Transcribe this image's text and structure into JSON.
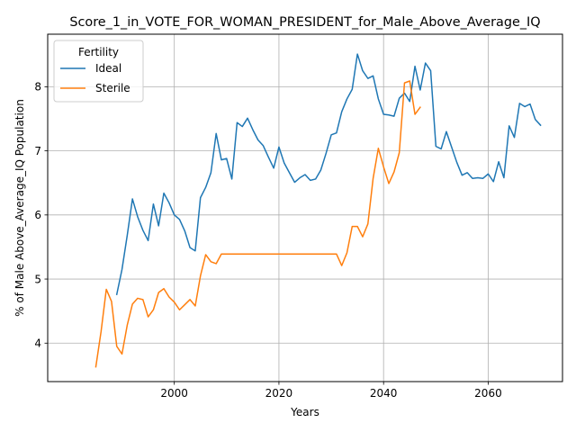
{
  "chart_data": {
    "type": "line",
    "title": "Score_1_in_VOTE_FOR_WOMAN_PRESIDENT_for_Male_Above_Average_IQ",
    "xlabel": "Years",
    "ylabel": "% of Male Above_Average_IQ Population",
    "xlim": [
      1975.8,
      2074.2
    ],
    "ylim": [
      3.4,
      8.82
    ],
    "xticks": [
      2000,
      2020,
      2040,
      2060
    ],
    "yticks": [
      4,
      5,
      6,
      7,
      8
    ],
    "grid": true,
    "legend": {
      "title": "Fertility",
      "placement": "top-left"
    },
    "series": [
      {
        "name": "Ideal",
        "color": "#1f77b4",
        "x": [
          1989,
          1990,
          1991,
          1992,
          1993,
          1994,
          1995,
          1996,
          1997,
          1998,
          1999,
          2000,
          2001,
          2002,
          2003,
          2004,
          2005,
          2006,
          2007,
          2008,
          2009,
          2010,
          2011,
          2012,
          2013,
          2014,
          2015,
          2016,
          2017,
          2018,
          2019,
          2020,
          2021,
          2022,
          2023,
          2024,
          2025,
          2026,
          2027,
          2028,
          2029,
          2030,
          2031,
          2032,
          2033,
          2034,
          2035,
          2036,
          2037,
          2038,
          2039,
          2040,
          2041,
          2042,
          2043,
          2044,
          2045,
          2046,
          2047,
          2048,
          2049,
          2050,
          2051,
          2052,
          2053,
          2054,
          2055,
          2056,
          2057,
          2058,
          2059,
          2060,
          2061,
          2062,
          2063,
          2064,
          2065,
          2066,
          2067,
          2068,
          2069,
          2070
        ],
        "values": [
          4.76,
          5.15,
          5.68,
          6.25,
          5.97,
          5.76,
          5.6,
          6.17,
          5.83,
          6.34,
          6.19,
          6.0,
          5.93,
          5.75,
          5.49,
          5.44,
          6.27,
          6.43,
          6.66,
          7.27,
          6.86,
          6.88,
          6.56,
          7.44,
          7.38,
          7.51,
          7.33,
          7.17,
          7.08,
          6.9,
          6.73,
          7.06,
          6.81,
          6.66,
          6.51,
          6.58,
          6.63,
          6.54,
          6.56,
          6.7,
          6.96,
          7.25,
          7.28,
          7.61,
          7.81,
          7.96,
          8.51,
          8.25,
          8.13,
          8.17,
          7.81,
          7.57,
          7.56,
          7.54,
          7.82,
          7.9,
          7.77,
          8.32,
          7.95,
          8.37,
          8.25,
          7.07,
          7.03,
          7.3,
          7.06,
          6.82,
          6.62,
          6.66,
          6.57,
          6.58,
          6.57,
          6.64,
          6.52,
          6.83,
          6.58,
          7.39,
          7.21,
          7.74,
          7.69,
          7.73,
          7.49,
          7.4
        ]
      },
      {
        "name": "Sterile",
        "color": "#ff7f0e",
        "x": [
          1985,
          1986,
          1987,
          1988,
          1989,
          1990,
          1991,
          1992,
          1993,
          1994,
          1995,
          1996,
          1997,
          1998,
          1999,
          2000,
          2001,
          2002,
          2003,
          2004,
          2005,
          2006,
          2007,
          2008,
          2009,
          2010,
          2011,
          2012,
          2013,
          2014,
          2015,
          2016,
          2017,
          2018,
          2019,
          2020,
          2021,
          2022,
          2023,
          2024,
          2025,
          2026,
          2027,
          2028,
          2029,
          2030,
          2031,
          2032,
          2033,
          2034,
          2035,
          2036,
          2037,
          2038,
          2039,
          2040,
          2041,
          2042,
          2043,
          2044,
          2045,
          2046,
          2047
        ],
        "values": [
          3.63,
          4.18,
          4.84,
          4.65,
          3.95,
          3.83,
          4.28,
          4.61,
          4.7,
          4.68,
          4.41,
          4.52,
          4.79,
          4.85,
          4.72,
          4.64,
          4.52,
          4.6,
          4.68,
          4.58,
          5.05,
          5.38,
          5.27,
          5.24,
          5.39,
          5.39,
          5.39,
          5.39,
          5.39,
          5.39,
          5.39,
          5.39,
          5.39,
          5.39,
          5.39,
          5.39,
          5.39,
          5.39,
          5.39,
          5.39,
          5.39,
          5.39,
          5.39,
          5.39,
          5.39,
          5.39,
          5.39,
          5.21,
          5.41,
          5.82,
          5.82,
          5.66,
          5.86,
          6.57,
          7.04,
          6.75,
          6.49,
          6.67,
          6.97,
          8.06,
          8.09,
          7.57,
          7.68
        ]
      }
    ]
  }
}
